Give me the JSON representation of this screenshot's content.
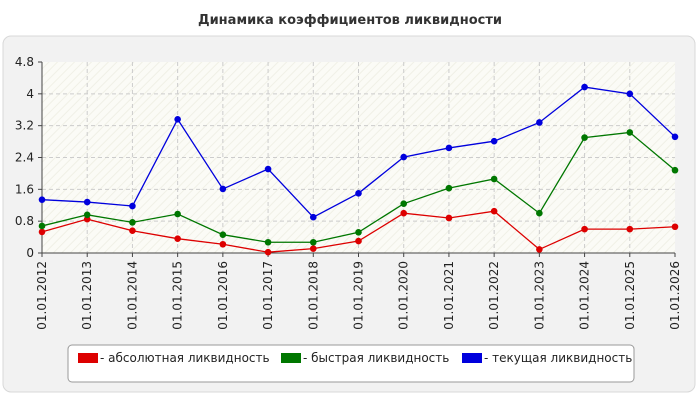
{
  "chart_data": {
    "type": "line",
    "title": "Динамика коэффициентов ликвидности",
    "xlabel": "",
    "ylabel": "",
    "categories": [
      "01.01.2012",
      "01.01.2013",
      "01.01.2014",
      "01.01.2015",
      "01.01.2016",
      "01.01.2017",
      "01.01.2018",
      "01.01.2019",
      "01.01.2020",
      "01.01.2021",
      "01.01.2022",
      "01.01.2023",
      "01.01.2024",
      "01.01.2025",
      "01.01.2026"
    ],
    "y_ticks": [
      "0",
      "0.8",
      "1.6",
      "2.4",
      "3.2",
      "4",
      "4.8"
    ],
    "ylim": [
      0,
      4.8
    ],
    "grid": true,
    "legend_position": "bottom",
    "series": [
      {
        "name": "- абсолютная ликвидность",
        "color": "#dd0000",
        "values": [
          0.53,
          0.85,
          0.56,
          0.36,
          0.22,
          0.02,
          0.11,
          0.3,
          1.0,
          0.88,
          1.05,
          0.09,
          0.6,
          0.6,
          0.66
        ]
      },
      {
        "name": "- быстрая ликвидность",
        "color": "#007700",
        "values": [
          0.68,
          0.96,
          0.77,
          0.98,
          0.46,
          0.27,
          0.27,
          0.52,
          1.24,
          1.63,
          1.86,
          1.0,
          2.9,
          3.03,
          2.08
        ]
      },
      {
        "name": "- текущая ликвидность",
        "color": "#0000dd",
        "values": [
          1.34,
          1.28,
          1.18,
          3.36,
          1.61,
          2.11,
          0.9,
          1.5,
          2.41,
          2.64,
          2.81,
          3.28,
          4.17,
          4.0,
          2.92
        ]
      }
    ]
  }
}
